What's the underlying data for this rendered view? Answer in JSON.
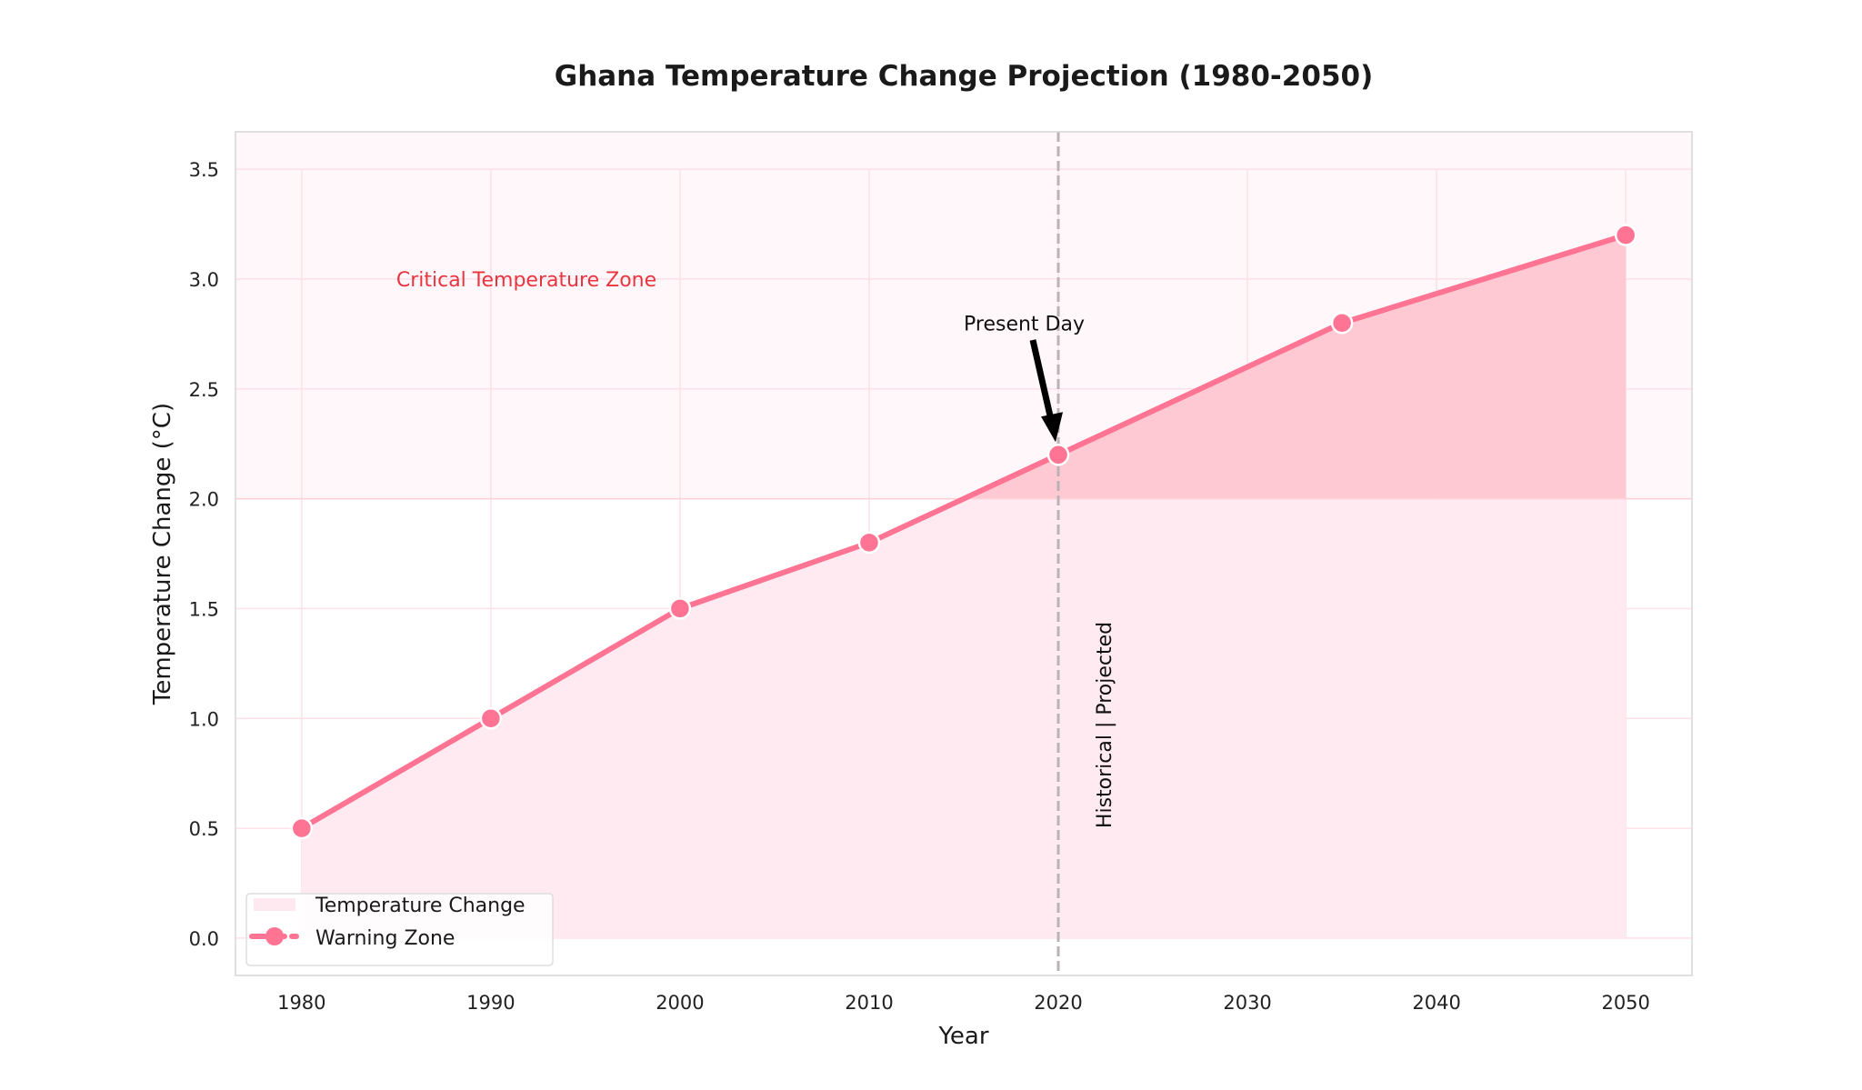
{
  "chart_data": {
    "type": "line",
    "title": "Ghana Temperature Change Projection (1980-2050)",
    "xlabel": "Year",
    "ylabel": "Temperature Change (°C)",
    "x": [
      1980,
      1990,
      2000,
      2010,
      2020,
      2035,
      2050
    ],
    "series": [
      {
        "name": "Warning Zone",
        "values": [
          0.5,
          1.0,
          1.5,
          1.8,
          2.2,
          2.8,
          3.2
        ],
        "color": "#ff7393",
        "marker": "circle"
      }
    ],
    "area": {
      "name": "Temperature Change",
      "color": "#ffe9f1"
    },
    "threshold_fill": {
      "above": 2.0,
      "color": "#ffc9d3"
    },
    "critical_zone": {
      "label": "Critical Temperature Zone",
      "from": 2.0,
      "color": "#fff7fa",
      "label_color": "#e8363f",
      "label_x": 1985,
      "label_y": 3.0
    },
    "xticks": [
      1980,
      1990,
      2000,
      2010,
      2020,
      2030,
      2040,
      2050
    ],
    "yticks": [
      0.0,
      0.5,
      1.0,
      1.5,
      2.0,
      2.5,
      3.0,
      3.5
    ],
    "xlim": [
      1976.5,
      2053.5
    ],
    "ylim": [
      -0.17,
      3.67
    ],
    "grid": true,
    "legend": "lower-left",
    "vline": {
      "x": 2020,
      "label": "Historical | Projected",
      "color": "#b9b3b6",
      "style": "dashed"
    },
    "annotation": {
      "text": "Present Day",
      "x": 2020,
      "y": 2.2,
      "text_x": 2015,
      "text_y": 2.8
    }
  }
}
